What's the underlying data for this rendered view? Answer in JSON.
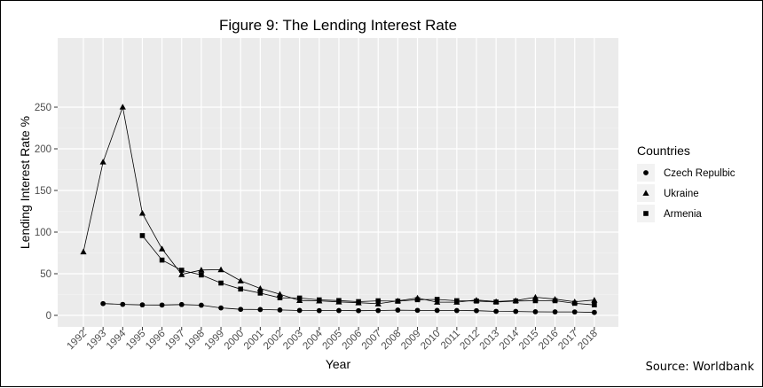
{
  "chart_data": {
    "type": "line",
    "title": "Figure 9: The Lending Interest Rate",
    "xlabel": "Year",
    "ylabel": "Lending Interest Rate %",
    "ylim": [
      0,
      255
    ],
    "yticks": [
      0,
      50,
      100,
      150,
      200,
      250
    ],
    "categories": [
      "1992",
      "1993",
      "1994",
      "1995",
      "1996",
      "1997",
      "1998",
      "1999",
      "2000",
      "2001",
      "2002",
      "2003",
      "2004",
      "2005",
      "2006",
      "2007",
      "2008",
      "2009",
      "2010",
      "2011",
      "2012",
      "2013",
      "2014",
      "2015",
      "2016",
      "2017",
      "2018"
    ],
    "grid": true,
    "legend": {
      "title": "Countries",
      "position": "right"
    },
    "series": [
      {
        "name": "Czech Repulbic",
        "marker": "circle",
        "values": [
          null,
          14.1,
          13.2,
          12.6,
          12.4,
          13.0,
          12.2,
          8.9,
          7.2,
          7.0,
          6.5,
          5.9,
          5.7,
          5.8,
          5.6,
          5.8,
          6.3,
          6.0,
          5.9,
          5.8,
          5.6,
          4.8,
          4.7,
          4.3,
          4.2,
          4.1,
          3.5
        ]
      },
      {
        "name": "Ukraine",
        "marker": "triangle",
        "values": [
          76.4,
          184.3,
          250.3,
          122.7,
          79.9,
          49.1,
          54.5,
          54.9,
          41.5,
          32.3,
          25.4,
          17.9,
          17.4,
          16.2,
          15.2,
          13.9,
          17.5,
          20.9,
          15.9,
          15.9,
          18.4,
          16.6,
          17.8,
          21.8,
          19.5,
          16.4,
          18.4
        ]
      },
      {
        "name": "Armenia",
        "marker": "square",
        "values": [
          null,
          null,
          null,
          95.8,
          66.4,
          54.2,
          48.5,
          38.8,
          31.6,
          26.7,
          21.1,
          20.8,
          18.6,
          17.8,
          16.5,
          17.5,
          17.0,
          18.8,
          19.2,
          17.6,
          17.2,
          16.0,
          17.2,
          17.6,
          17.6,
          14.5,
          12.6
        ]
      }
    ]
  },
  "source_note": "Source: Worldbank"
}
